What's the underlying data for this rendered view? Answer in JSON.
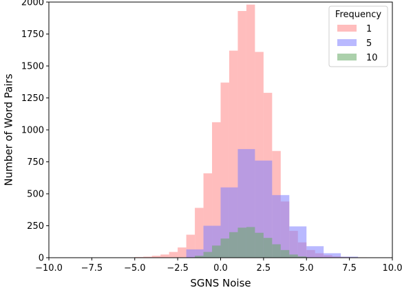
{
  "chart_data": {
    "type": "histogram",
    "title": "",
    "xlabel": "SGNS Noise",
    "ylabel": "Number of Word Pairs",
    "xlim": [
      -10,
      10
    ],
    "ylim": [
      0,
      2000
    ],
    "xticks": [
      -10.0,
      -7.5,
      -5.0,
      -2.5,
      0.0,
      2.5,
      5.0,
      7.5,
      10.0
    ],
    "xtick_labels": [
      "−10.0",
      "−7.5",
      "−5.0",
      "−2.5",
      "0.0",
      "2.5",
      "5.0",
      "7.5",
      "10.0"
    ],
    "yticks": [
      0,
      250,
      500,
      750,
      1000,
      1250,
      1500,
      1750,
      2000
    ],
    "ytick_labels": [
      "0",
      "250",
      "500",
      "750",
      "1000",
      "1250",
      "1500",
      "1750",
      "2000"
    ],
    "grid": false,
    "legend": {
      "title": "Frequency",
      "placement": "top-right"
    },
    "series": [
      {
        "name": "1",
        "color": "#ff9999",
        "alpha": 0.65,
        "bins": [
          {
            "x0": -5.0,
            "x1": -4.5,
            "count": 5
          },
          {
            "x0": -4.5,
            "x1": -4.0,
            "count": 8
          },
          {
            "x0": -4.0,
            "x1": -3.5,
            "count": 15
          },
          {
            "x0": -3.5,
            "x1": -3.0,
            "count": 25
          },
          {
            "x0": -3.0,
            "x1": -2.5,
            "count": 45
          },
          {
            "x0": -2.5,
            "x1": -2.0,
            "count": 80
          },
          {
            "x0": -2.0,
            "x1": -1.5,
            "count": 180
          },
          {
            "x0": -1.5,
            "x1": -1.0,
            "count": 390
          },
          {
            "x0": -1.0,
            "x1": -0.5,
            "count": 660
          },
          {
            "x0": -0.5,
            "x1": 0.0,
            "count": 1060
          },
          {
            "x0": 0.0,
            "x1": 0.5,
            "count": 1370
          },
          {
            "x0": 0.5,
            "x1": 1.0,
            "count": 1620
          },
          {
            "x0": 1.0,
            "x1": 1.5,
            "count": 1930
          },
          {
            "x0": 1.5,
            "x1": 2.0,
            "count": 1980
          },
          {
            "x0": 2.0,
            "x1": 2.5,
            "count": 1610
          },
          {
            "x0": 2.5,
            "x1": 3.0,
            "count": 1290
          },
          {
            "x0": 3.0,
            "x1": 3.5,
            "count": 835
          },
          {
            "x0": 3.5,
            "x1": 4.0,
            "count": 440
          },
          {
            "x0": 4.0,
            "x1": 4.5,
            "count": 210
          },
          {
            "x0": 4.5,
            "x1": 5.0,
            "count": 120
          },
          {
            "x0": 5.0,
            "x1": 5.5,
            "count": 60
          },
          {
            "x0": 5.5,
            "x1": 6.0,
            "count": 35
          },
          {
            "x0": 6.0,
            "x1": 6.5,
            "count": 20
          },
          {
            "x0": 6.5,
            "x1": 7.0,
            "count": 10
          },
          {
            "x0": 7.0,
            "x1": 7.5,
            "count": 6
          },
          {
            "x0": 7.5,
            "x1": 8.0,
            "count": 4
          },
          {
            "x0": 8.0,
            "x1": 8.5,
            "count": 3
          },
          {
            "x0": 8.5,
            "x1": 9.0,
            "count": 2
          },
          {
            "x0": 9.0,
            "x1": 9.5,
            "count": 2
          },
          {
            "x0": 9.5,
            "x1": 10.0,
            "count": 1
          }
        ]
      },
      {
        "name": "5",
        "color": "#8080ff",
        "alpha": 0.55,
        "bins": [
          {
            "x0": -2.0,
            "x1": -1.0,
            "count": 65
          },
          {
            "x0": -1.0,
            "x1": 0.0,
            "count": 250
          },
          {
            "x0": 0.0,
            "x1": 1.0,
            "count": 550
          },
          {
            "x0": 1.0,
            "x1": 2.0,
            "count": 850
          },
          {
            "x0": 2.0,
            "x1": 3.0,
            "count": 760
          },
          {
            "x0": 3.0,
            "x1": 4.0,
            "count": 490
          },
          {
            "x0": 4.0,
            "x1": 5.0,
            "count": 245
          },
          {
            "x0": 5.0,
            "x1": 6.0,
            "count": 90
          },
          {
            "x0": 6.0,
            "x1": 7.0,
            "count": 35
          },
          {
            "x0": 7.0,
            "x1": 8.0,
            "count": 8
          }
        ]
      },
      {
        "name": "10",
        "color": "#66aa66",
        "alpha": 0.55,
        "bins": [
          {
            "x0": -1.5,
            "x1": -1.0,
            "count": 15
          },
          {
            "x0": -1.0,
            "x1": -0.5,
            "count": 45
          },
          {
            "x0": -0.5,
            "x1": 0.0,
            "count": 95
          },
          {
            "x0": 0.0,
            "x1": 0.5,
            "count": 150
          },
          {
            "x0": 0.5,
            "x1": 1.0,
            "count": 200
          },
          {
            "x0": 1.0,
            "x1": 1.5,
            "count": 235
          },
          {
            "x0": 1.5,
            "x1": 2.0,
            "count": 240
          },
          {
            "x0": 2.0,
            "x1": 2.5,
            "count": 195
          },
          {
            "x0": 2.5,
            "x1": 3.0,
            "count": 155
          },
          {
            "x0": 3.0,
            "x1": 3.5,
            "count": 105
          },
          {
            "x0": 3.5,
            "x1": 4.0,
            "count": 60
          },
          {
            "x0": 4.0,
            "x1": 4.5,
            "count": 25
          },
          {
            "x0": 4.5,
            "x1": 5.0,
            "count": 10
          }
        ]
      }
    ]
  }
}
